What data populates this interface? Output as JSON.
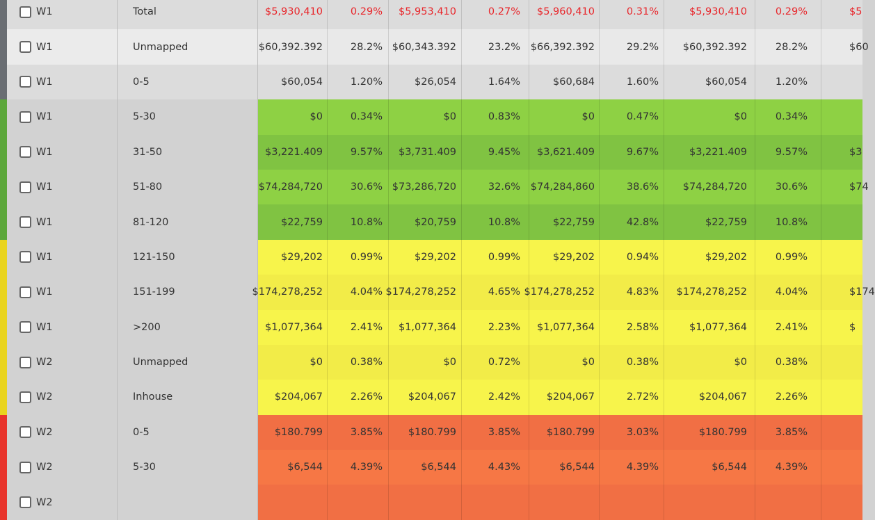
{
  "colors": {
    "bar_grey": "#6a6e73",
    "bar_green": "#5ca73b",
    "bar_yellow": "#e9d41f",
    "bar_red": "#e8342c",
    "total_text": "#e8262b"
  },
  "rows": [
    {
      "group": "W1",
      "band": "Total",
      "zone": "grey",
      "shade": "a",
      "values": [
        "$5,930,410",
        "0.29%",
        "$5,953,410",
        "0.27%",
        "$5,960,410",
        "0.31%",
        "$5,930,410",
        "0.29%",
        "$5"
      ]
    },
    {
      "group": "W1",
      "band": "Unmapped",
      "zone": "grey",
      "shade": "b",
      "values": [
        "$60,392.392",
        "28.2%",
        "$60,343.392",
        "23.2%",
        "$66,392.392",
        "29.2%",
        "$60,392.392",
        "28.2%",
        "$60"
      ]
    },
    {
      "group": "W1",
      "band": "0-5",
      "zone": "grey",
      "shade": "a",
      "values": [
        "$60,054",
        "1.20%",
        "$26,054",
        "1.64%",
        "$60,684",
        "1.60%",
        "$60,054",
        "1.20%",
        ""
      ]
    },
    {
      "group": "W1",
      "band": "5-30",
      "zone": "green",
      "shade": "a",
      "values": [
        "$0",
        "0.34%",
        "$0",
        "0.83%",
        "$0",
        "0.47%",
        "$0",
        "0.34%",
        ""
      ]
    },
    {
      "group": "W1",
      "band": "31-50",
      "zone": "green",
      "shade": "b",
      "values": [
        "$3,221.409",
        "9.57%",
        "$3,731.409",
        "9.45%",
        "$3,621.409",
        "9.67%",
        "$3,221.409",
        "9.57%",
        "$3"
      ]
    },
    {
      "group": "W1",
      "band": "51-80",
      "zone": "green",
      "shade": "a",
      "values": [
        "$74,284,720",
        "30.6%",
        "$73,286,720",
        "32.6%",
        "$74,284,860",
        "38.6%",
        "$74,284,720",
        "30.6%",
        "$74"
      ]
    },
    {
      "group": "W1",
      "band": "81-120",
      "zone": "green",
      "shade": "b",
      "values": [
        "$22,759",
        "10.8%",
        "$20,759",
        "10.8%",
        "$22,759",
        "42.8%",
        "$22,759",
        "10.8%",
        ""
      ]
    },
    {
      "group": "W1",
      "band": "121-150",
      "zone": "yellow",
      "shade": "a",
      "values": [
        "$29,202",
        "0.99%",
        "$29,202",
        "0.99%",
        "$29,202",
        "0.94%",
        "$29,202",
        "0.99%",
        ""
      ]
    },
    {
      "group": "W1",
      "band": "151-199",
      "zone": "yellow",
      "shade": "b",
      "values": [
        "$174,278,252",
        "4.04%",
        "$174,278,252",
        "4.65%",
        "$174,278,252",
        "4.83%",
        "$174,278,252",
        "4.04%",
        "$174"
      ]
    },
    {
      "group": "W1",
      "band": ">200",
      "zone": "yellow",
      "shade": "a",
      "values": [
        "$1,077,364",
        "2.41%",
        "$1,077,364",
        "2.23%",
        "$1,077,364",
        "2.58%",
        "$1,077,364",
        "2.41%",
        "$"
      ]
    },
    {
      "group": "W2",
      "band": "Unmapped",
      "zone": "yellow",
      "shade": "b",
      "values": [
        "$0",
        "0.38%",
        "$0",
        "0.72%",
        "$0",
        "0.38%",
        "$0",
        "0.38%",
        ""
      ]
    },
    {
      "group": "W2",
      "band": "Inhouse",
      "zone": "yellow",
      "shade": "a",
      "values": [
        "$204,067",
        "2.26%",
        "$204,067",
        "2.42%",
        "$204,067",
        "2.72%",
        "$204,067",
        "2.26%",
        ""
      ]
    },
    {
      "group": "W2",
      "band": "0-5",
      "zone": "red",
      "shade": "a",
      "values": [
        "$180.799",
        "3.85%",
        "$180.799",
        "3.85%",
        "$180.799",
        "3.03%",
        "$180.799",
        "3.85%",
        ""
      ]
    },
    {
      "group": "W2",
      "band": "5-30",
      "zone": "red",
      "shade": "b",
      "values": [
        "$6,544",
        "4.39%",
        "$6,544",
        "4.43%",
        "$6,544",
        "4.39%",
        "$6,544",
        "4.39%",
        ""
      ]
    },
    {
      "group": "W2",
      "band": "",
      "zone": "red",
      "shade": "a",
      "values": [
        "",
        "",
        "",
        "",
        "",
        "",
        "",
        "",
        ""
      ]
    }
  ]
}
